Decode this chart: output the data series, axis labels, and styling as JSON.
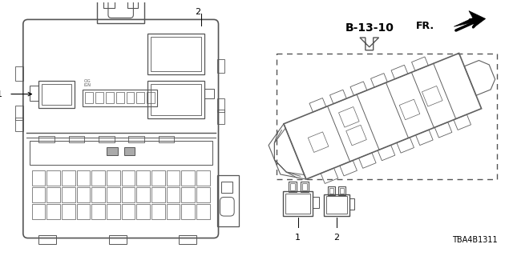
{
  "bg_color": "#ffffff",
  "diagram_title": "B-13-10",
  "part_number": "TBA4B1311",
  "fr_label": "FR.",
  "left_labels": {
    "l1": "1",
    "l2": "2"
  },
  "right_labels": {
    "l1": "1",
    "l2": "2"
  },
  "figsize": [
    6.4,
    3.2
  ],
  "dpi": 100
}
